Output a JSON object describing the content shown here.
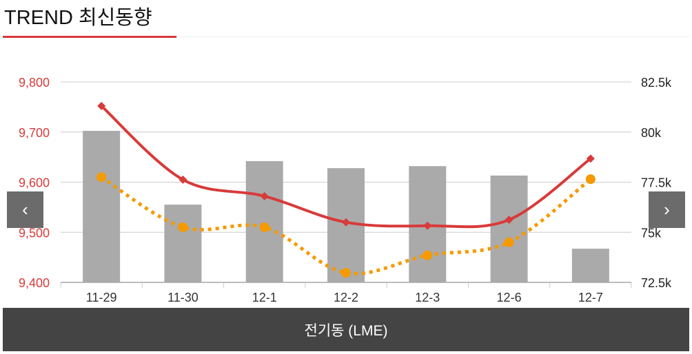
{
  "header": {
    "title": "TREND 최신동향"
  },
  "nav": {
    "prev": "‹",
    "next": "›"
  },
  "footer": {
    "label": "전기동 (LME)"
  },
  "colors": {
    "red": "#d93a3a",
    "orange": "#f59a00",
    "bar": "#aaaaaa"
  },
  "chart_data": {
    "type": "bar+line",
    "categories": [
      "11-29",
      "11-30",
      "12-1",
      "12-2",
      "12-3",
      "12-6",
      "12-7"
    ],
    "left_axis": {
      "ticks": [
        "9,400",
        "9,500",
        "9,600",
        "9,700",
        "9,800"
      ],
      "range": [
        9400,
        9800
      ]
    },
    "right_axis": {
      "ticks": [
        "72.5k",
        "75k",
        "77.5k",
        "80k",
        "82.5k"
      ],
      "range": [
        72500,
        82500
      ]
    },
    "series": [
      {
        "name": "bars",
        "type": "bar",
        "axis": "right",
        "values": [
          80060,
          76380,
          78550,
          78200,
          78300,
          77830,
          74180
        ]
      },
      {
        "name": "red line",
        "type": "line",
        "axis": "left",
        "values": [
          9752,
          9605,
          9572,
          9520,
          9513,
          9525,
          9647
        ]
      },
      {
        "name": "orange dotted line",
        "type": "line",
        "axis": "left",
        "values": [
          9610,
          9510,
          9510,
          9419,
          9454,
          9480,
          9606
        ]
      }
    ],
    "grid": true
  }
}
